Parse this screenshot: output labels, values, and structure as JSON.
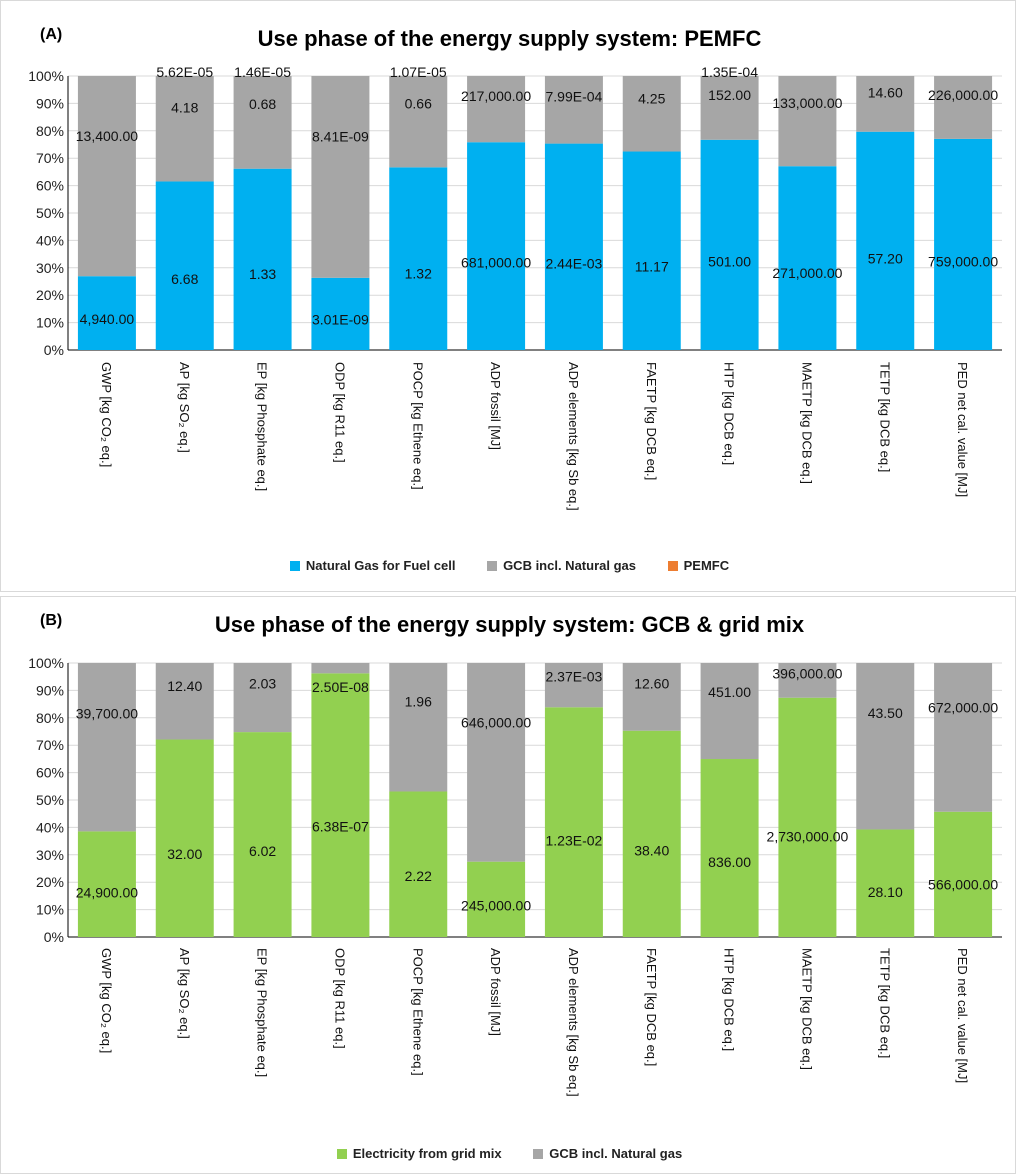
{
  "colors": {
    "blue": "#00B0F0",
    "gray": "#A6A6A6",
    "orange": "#ED7D31",
    "green": "#92D050"
  },
  "chart_data": [
    {
      "type": "bar",
      "stacked": true,
      "normalized": true,
      "panel_label": "(A)",
      "title": "Use phase of the energy supply system: PEMFC",
      "ylim": [
        0,
        100
      ],
      "y_ticks": [
        "0%",
        "10%",
        "20%",
        "30%",
        "40%",
        "50%",
        "60%",
        "70%",
        "80%",
        "90%",
        "100%"
      ],
      "grid": true,
      "legend_position": "bottom",
      "categories": [
        "GWP  [kg CO₂ eq.]",
        "AP  [kg SO₂ eq.]",
        "EP [kg Phosphate eq.]",
        "ODP  [kg R11 eq.]",
        "POCP  [kg Ethene eq.]",
        "ADP fossil  [MJ]",
        "ADP elements   [kg Sb eq.]",
        "FAETP [kg DCB eq.]",
        "HTP [kg DCB eq.]",
        "MAETP [kg DCB eq.]",
        "TETP [kg DCB eq.]",
        "PED net cal. value [MJ]"
      ],
      "series": [
        {
          "name": "Natural Gas for Fuel cell",
          "color": "#00B0F0",
          "values": [
            4940,
            6.68,
            1.33,
            3.01e-09,
            1.32,
            681000,
            0.00244,
            11.17,
            501,
            271000,
            57.2,
            759000
          ],
          "labels": [
            "4,940.00",
            "6.68",
            "1.33",
            "3.01E-09",
            "1.32",
            "681,000.00",
            "2.44E-03",
            "11.17",
            "501.00",
            "271,000.00",
            "57.20",
            "759,000.00"
          ]
        },
        {
          "name": "GCB incl. Natural gas",
          "color": "#A6A6A6",
          "values": [
            13400,
            4.18,
            0.68,
            8.41e-09,
            0.66,
            217000,
            0.000799,
            4.25,
            152,
            133000,
            14.6,
            226000
          ],
          "labels": [
            "13,400.00",
            "4.18",
            "0.68",
            "8.41E-09",
            "0.66",
            "217,000.00",
            "7.99E-04",
            "4.25",
            "152.00",
            "133,000.00",
            "14.60",
            "226,000.00"
          ]
        },
        {
          "name": "PEMFC",
          "color": "#ED7D31",
          "values": [
            0,
            5.62e-05,
            1.46e-05,
            0,
            1.07e-05,
            0,
            0,
            0,
            0.000135,
            0,
            0,
            0
          ],
          "labels": [
            "",
            "5.62E-05",
            "1.46E-05",
            "",
            "1.07E-05",
            "",
            "",
            "",
            "1.35E-04",
            "",
            "",
            ""
          ]
        }
      ]
    },
    {
      "type": "bar",
      "stacked": true,
      "normalized": true,
      "panel_label": "(B)",
      "title": "Use phase of the energy supply system: GCB & grid mix",
      "ylim": [
        0,
        100
      ],
      "y_ticks": [
        "0%",
        "10%",
        "20%",
        "30%",
        "40%",
        "50%",
        "60%",
        "70%",
        "80%",
        "90%",
        "100%"
      ],
      "grid": true,
      "legend_position": "bottom",
      "categories": [
        "GWP  [kg CO₂ eq.]",
        "AP  [kg SO₂ eq.]",
        "EP [kg Phosphate eq.]",
        "ODP  [kg R11 eq.]",
        "POCP  [kg Ethene eq.]",
        "ADP fossil  [MJ]",
        "ADP elements   [kg Sb eq.]",
        "FAETP [kg DCB eq.]",
        "HTP [kg DCB eq.]",
        "MAETP [kg DCB eq.]",
        "TETP [kg DCB eq.]",
        "PED net cal. value [MJ]"
      ],
      "series": [
        {
          "name": "Electricity from grid mix",
          "color": "#92D050",
          "values": [
            24900,
            32,
            6.02,
            6.38e-07,
            2.22,
            245000,
            0.0123,
            38.4,
            836,
            2730000,
            28.1,
            566000
          ],
          "labels": [
            "24,900.00",
            "32.00",
            "6.02",
            "6.38E-07",
            "2.22",
            "245,000.00",
            "1.23E-02",
            "38.40",
            "836.00",
            "2,730,000.00",
            "28.10",
            "566,000.00"
          ]
        },
        {
          "name": "GCB incl. Natural gas",
          "color": "#A6A6A6",
          "values": [
            39700,
            12.4,
            2.03,
            2.5e-08,
            1.96,
            646000,
            0.00237,
            12.6,
            451,
            396000,
            43.5,
            672000
          ],
          "labels": [
            "39,700.00",
            "12.40",
            "2.03",
            "2.50E-08",
            "1.96",
            "646,000.00",
            "2.37E-03",
            "12.60",
            "451.00",
            "396,000.00",
            "43.50",
            "672,000.00"
          ]
        }
      ]
    }
  ]
}
